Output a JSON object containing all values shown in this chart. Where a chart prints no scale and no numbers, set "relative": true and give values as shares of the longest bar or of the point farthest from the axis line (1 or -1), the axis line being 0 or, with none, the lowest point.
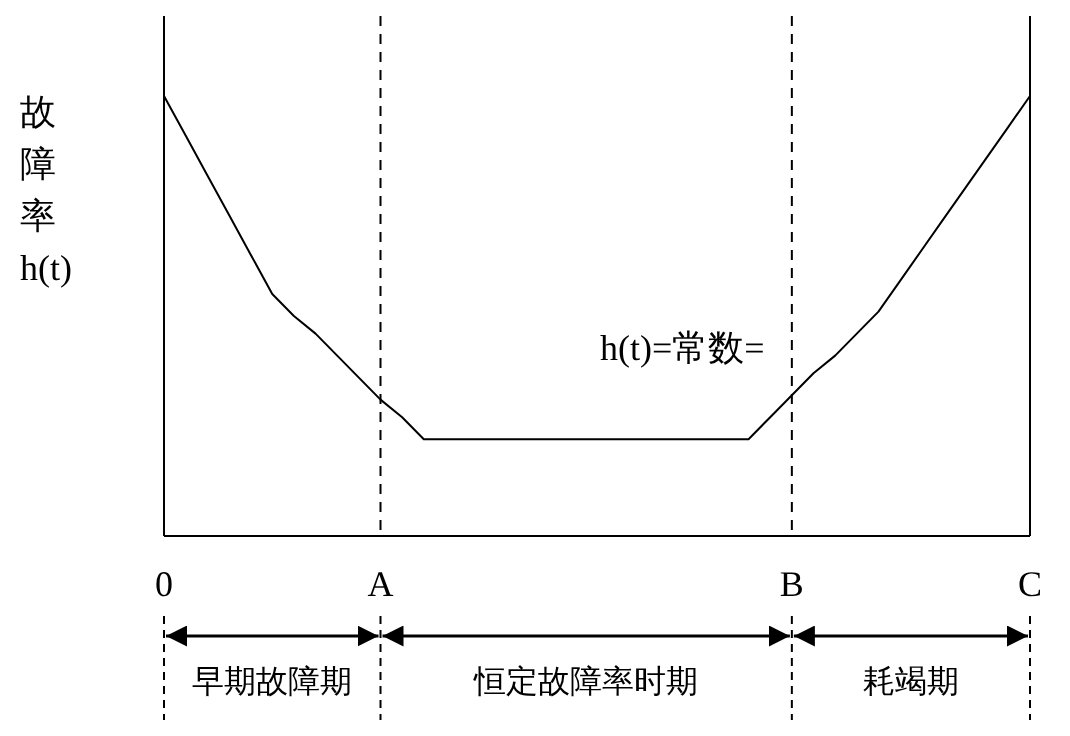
{
  "chart_data": {
    "type": "line",
    "relative": true,
    "ylabel": "故障率h(t)",
    "color": "#000000",
    "categories": [
      "0",
      null,
      null,
      null,
      null,
      null,
      null,
      null,
      null,
      null,
      "A",
      null,
      null,
      null,
      null,
      null,
      null,
      null,
      null,
      null,
      null,
      null,
      null,
      null,
      null,
      null,
      null,
      null,
      null,
      "B",
      null,
      null,
      null,
      null,
      null,
      null,
      null,
      null,
      null,
      null,
      "C"
    ],
    "values": [
      1,
      0.91,
      0.82,
      0.73,
      0.64,
      0.55,
      0.5,
      0.46,
      0.41,
      0.36,
      0.31,
      0.27,
      0.22,
      0.22,
      0.22,
      0.22,
      0.22,
      0.22,
      0.22,
      0.22,
      0.22,
      0.22,
      0.22,
      0.22,
      0.22,
      0.22,
      0.22,
      0.22,
      0.27,
      0.32,
      0.37,
      0.41,
      0.46,
      0.51,
      0.58,
      0.65,
      0.72,
      0.79,
      0.86,
      0.93,
      1
    ],
    "ref_lines": [
      {
        "axis": "x",
        "value": "A",
        "line_style": "dashed"
      },
      {
        "axis": "x",
        "value": "B",
        "line_style": "dashed"
      }
    ],
    "annotations": [
      "h(t)=常数=",
      "早期故障期",
      "恒定故障率时期",
      "耗竭期"
    ],
    "line_style": "solid",
    "marker": "none"
  }
}
